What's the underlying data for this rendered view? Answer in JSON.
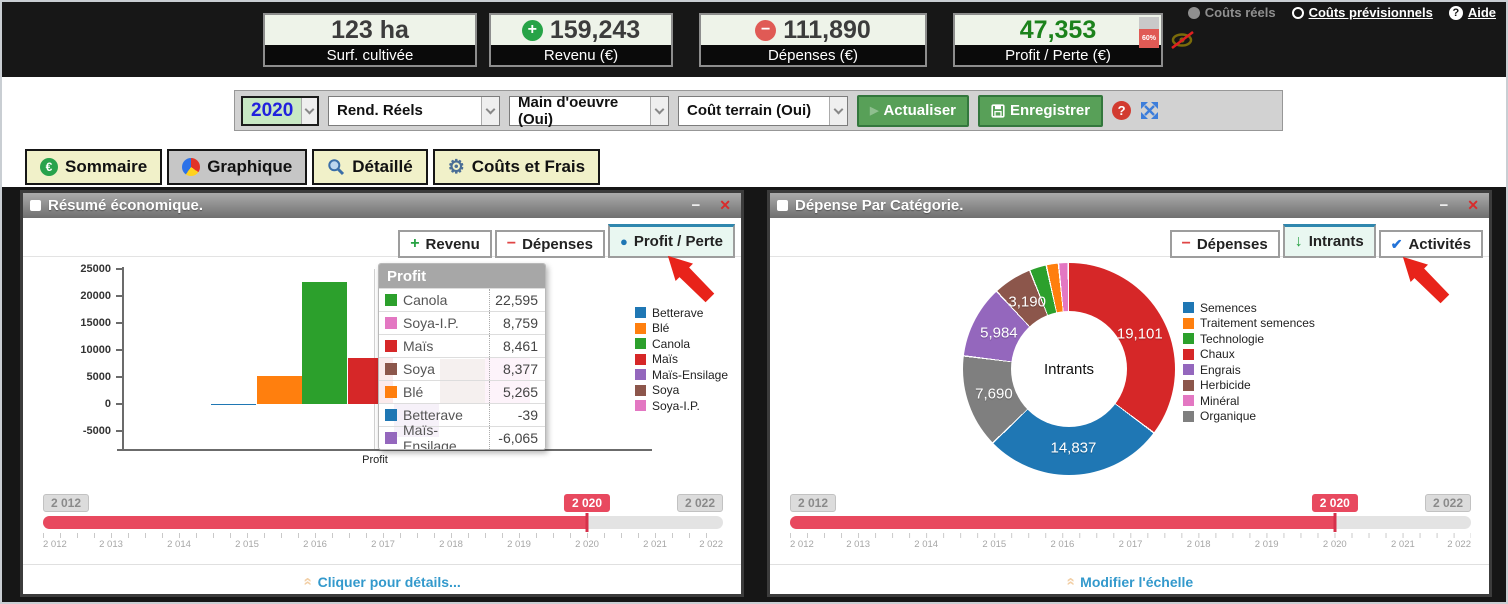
{
  "icons": {
    "radio_filled": "●",
    "help": "?",
    "minimize": "−",
    "close": "✕",
    "plus": "+",
    "minus": "−",
    "dot": "●",
    "down": "↓",
    "check": "✔",
    "chevrons_up": "»",
    "gear": "⚙",
    "euro": "€",
    "play": "▶"
  },
  "palette": {
    "Betterave": "#1f77b4",
    "Blé": "#ff7f0e",
    "Canola": "#2ca02c",
    "Maïs": "#d62728",
    "Maïs-Ensilage": "#9467bd",
    "Soya": "#8c564b",
    "Soya-I.P.": "#e377c2",
    "Semences": "#1f77b4",
    "Traitement semences": "#ff7f0e",
    "Technologie": "#2ca02c",
    "Chaux": "#d62728",
    "Engrais": "#9467bd",
    "Herbicide": "#8c564b",
    "Minéral": "#e377c2",
    "Organique": "#7f7f7f"
  },
  "header": {
    "cards": [
      {
        "value": "123 ha",
        "label": "Surf. cultivée"
      },
      {
        "value": "159,243",
        "label": "Revenu (€)"
      },
      {
        "value": "111,890",
        "label": "Dépenses (€)"
      },
      {
        "value": "47,353",
        "label": "Profit / Perte (€)",
        "gauge": "60%"
      }
    ],
    "links": {
      "couts_reels": "Coûts réels",
      "couts_previsionnels": "Coûts prévisionnels",
      "aide": "Aide"
    }
  },
  "toolbar": {
    "year": "2020",
    "selects": [
      "Rend. Réels",
      "Main d'oeuvre (Oui)",
      "Coût terrain (Oui)"
    ],
    "refresh_label": "Actualiser",
    "save_label": "Enregistrer"
  },
  "tabs": [
    {
      "label": "Sommaire"
    },
    {
      "label": "Graphique",
      "active": true
    },
    {
      "label": "Détaillé"
    },
    {
      "label": "Coûts et Frais"
    }
  ],
  "left_panel": {
    "title": "Résumé économique.",
    "buttons": [
      {
        "label": "Revenu"
      },
      {
        "label": "Dépenses"
      },
      {
        "label": "Profit / Perte",
        "active": true
      }
    ],
    "footer_link": "Cliquer pour détails..."
  },
  "right_panel": {
    "title": "Dépense Par Catégorie.",
    "buttons": [
      {
        "label": "Dépenses"
      },
      {
        "label": "Intrants",
        "active": true
      },
      {
        "label": "Activités"
      }
    ],
    "footer_link": "Modifier l'échelle"
  },
  "slider": {
    "start_badge": "2 012",
    "current_badge": "2 020",
    "end_badge": "2 022",
    "years": [
      "2 012",
      "2 013",
      "2 014",
      "2 015",
      "2 016",
      "2 017",
      "2 018",
      "2 019",
      "2 020",
      "2 021",
      "2 022"
    ],
    "current_index": 8
  },
  "chart_data": [
    {
      "type": "bar",
      "title": "Résumé économique",
      "categories": [
        "Profit"
      ],
      "xlabel": "Profit",
      "yticks": [
        25000,
        20000,
        15000,
        10000,
        5000,
        0,
        -5000
      ],
      "ylim": [
        -9000,
        25000
      ],
      "series": [
        {
          "name": "Betterave",
          "value": -39
        },
        {
          "name": "Blé",
          "value": 5265
        },
        {
          "name": "Canola",
          "value": 22595
        },
        {
          "name": "Maïs",
          "value": 8461
        },
        {
          "name": "Maïs-Ensilage",
          "value": -6065
        },
        {
          "name": "Soya",
          "value": 8377
        },
        {
          "name": "Soya-I.P.",
          "value": 8759
        }
      ],
      "legend": [
        "Betterave",
        "Blé",
        "Canola",
        "Maïs",
        "Maïs-Ensilage",
        "Soya",
        "Soya-I.P."
      ],
      "tooltip": {
        "title": "Profit",
        "rows": [
          {
            "name": "Canola",
            "value": "22,595"
          },
          {
            "name": "Soya-I.P.",
            "value": "8,759"
          },
          {
            "name": "Maïs",
            "value": "8,461"
          },
          {
            "name": "Soya",
            "value": "8,377"
          },
          {
            "name": "Blé",
            "value": "5,265"
          },
          {
            "name": "Betterave",
            "value": "-39"
          },
          {
            "name": "Maïs-Ensilage",
            "value": "-6,065"
          }
        ]
      }
    },
    {
      "type": "pie",
      "subtype": "donut",
      "title": "Dépense Par Catégorie",
      "center_label": "Intrants",
      "segments": [
        {
          "name": "Chaux",
          "value": 19101,
          "label": "19,101"
        },
        {
          "name": "Semences",
          "value": 14837,
          "label": "14,837"
        },
        {
          "name": "Organique",
          "value": 7690,
          "label": "7,690"
        },
        {
          "name": "Engrais",
          "value": 5984,
          "label": "5,984"
        },
        {
          "name": "Herbicide",
          "value": 3190,
          "label": "3,190"
        },
        {
          "name": "Technologie",
          "value": 1400,
          "label": "",
          "estimated": true
        },
        {
          "name": "Traitement semences",
          "value": 1000,
          "label": "",
          "estimated": true
        },
        {
          "name": "Minéral",
          "value": 800,
          "label": "",
          "estimated": true
        }
      ],
      "legend": [
        "Semences",
        "Traitement semences",
        "Technologie",
        "Chaux",
        "Engrais",
        "Herbicide",
        "Minéral",
        "Organique"
      ]
    }
  ]
}
